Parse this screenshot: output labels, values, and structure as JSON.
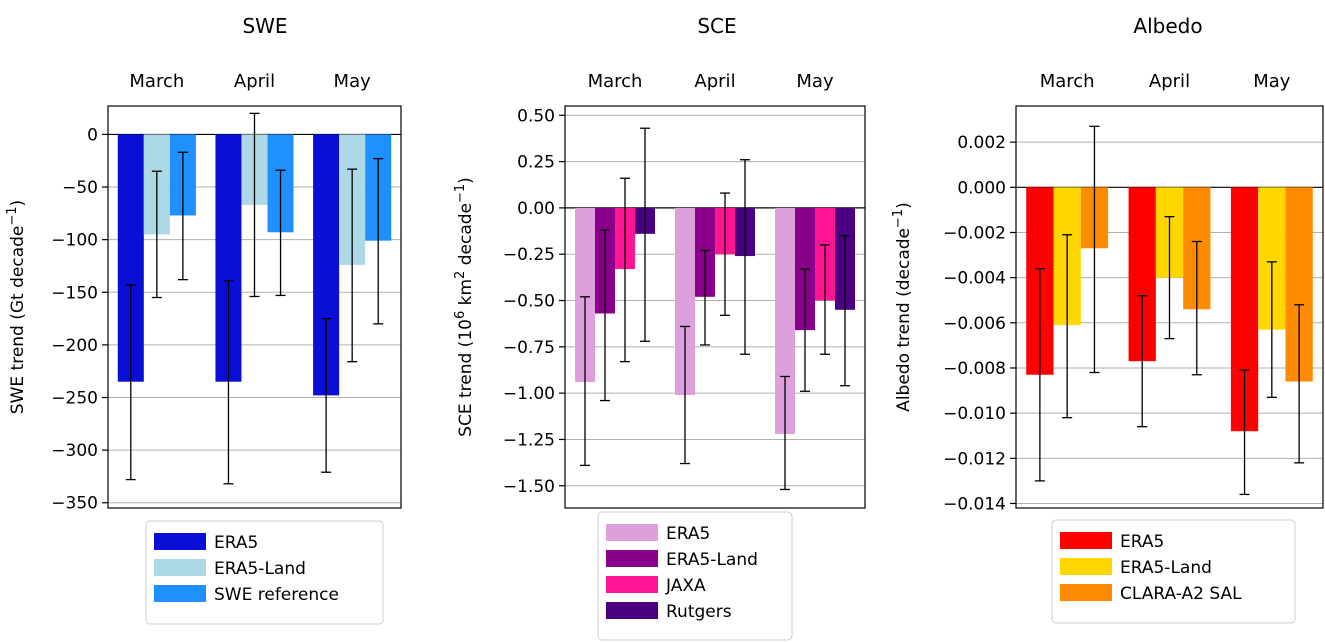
{
  "chart_data": [
    {
      "type": "bar",
      "title": "SWE",
      "ylabel_html": "SWE trend (Gt decade<sup>−1</sup>)",
      "xlabel": "",
      "categories": [
        "March",
        "April",
        "May"
      ],
      "ylim": [
        -355,
        27
      ],
      "yticks": [
        0,
        -50,
        -100,
        -150,
        -200,
        -250,
        -300,
        -350
      ],
      "yticklabels": [
        "0",
        "−50",
        "−100",
        "−150",
        "−200",
        "−250",
        "−300",
        "−350"
      ],
      "grid": "horizontal",
      "legend_position": "bottom",
      "series": [
        {
          "name": "ERA5",
          "color": "#0a0fd6",
          "values": [
            -235,
            -235,
            -248
          ],
          "err_low": [
            -328,
            -332,
            -321
          ],
          "err_high": [
            -143,
            -139,
            -175
          ]
        },
        {
          "name": "ERA5-Land",
          "color": "#add8e6",
          "values": [
            -95,
            -67,
            -124
          ],
          "err_low": [
            -155,
            -154,
            -216
          ],
          "err_high": [
            -35,
            20,
            -33
          ]
        },
        {
          "name": "SWE reference",
          "color": "#1e90ff",
          "values": [
            -77,
            -93,
            -101
          ],
          "err_low": [
            -138,
            -153,
            -180
          ],
          "err_high": [
            -17,
            -34,
            -23
          ]
        }
      ]
    },
    {
      "type": "bar",
      "title": "SCE",
      "ylabel_html": "SCE trend (10<sup>6</sup> km<sup>2</sup> decade<sup>−1</sup>)",
      "xlabel": "",
      "categories": [
        "March",
        "April",
        "May"
      ],
      "ylim": [
        -1.62,
        0.55
      ],
      "yticks": [
        0.5,
        0.25,
        0,
        -0.25,
        -0.5,
        -0.75,
        -1.0,
        -1.25,
        -1.5
      ],
      "yticklabels": [
        "0.50",
        "0.25",
        "0.00",
        "−0.25",
        "−0.50",
        "−0.75",
        "−1.00",
        "−1.25",
        "−1.50"
      ],
      "grid": "horizontal",
      "legend_position": "bottom",
      "series": [
        {
          "name": "ERA5",
          "color": "#dda0dd",
          "values": [
            -0.94,
            -1.01,
            -1.22
          ],
          "err_low": [
            -1.39,
            -1.38,
            -1.52
          ],
          "err_high": [
            -0.48,
            -0.64,
            -0.91
          ]
        },
        {
          "name": "ERA5-Land",
          "color": "#8b008b",
          "values": [
            -0.57,
            -0.48,
            -0.66
          ],
          "err_low": [
            -1.04,
            -0.74,
            -0.99
          ],
          "err_high": [
            -0.12,
            -0.23,
            -0.33
          ]
        },
        {
          "name": "JAXA",
          "color": "#ff1493",
          "values": [
            -0.33,
            -0.25,
            -0.5
          ],
          "err_low": [
            -0.83,
            -0.58,
            -0.79
          ],
          "err_high": [
            0.16,
            0.08,
            -0.2
          ]
        },
        {
          "name": "Rutgers",
          "color": "#4b0082",
          "values": [
            -0.14,
            -0.26,
            -0.55
          ],
          "err_low": [
            -0.72,
            -0.79,
            -0.96
          ],
          "err_high": [
            0.43,
            0.26,
            -0.15
          ]
        }
      ]
    },
    {
      "type": "bar",
      "title": "Albedo",
      "ylabel_html": "Albedo trend (decade<sup>−1</sup>)",
      "xlabel": "",
      "categories": [
        "March",
        "April",
        "May"
      ],
      "ylim": [
        -0.0142,
        0.0036
      ],
      "yticks": [
        0.002,
        0,
        -0.002,
        -0.004,
        -0.006,
        -0.008,
        -0.01,
        -0.012,
        -0.014
      ],
      "yticklabels": [
        "0.002",
        "0.000",
        "−0.002",
        "−0.004",
        "−0.006",
        "−0.008",
        "−0.010",
        "−0.012",
        "−0.014"
      ],
      "grid": "horizontal",
      "legend_position": "bottom",
      "series": [
        {
          "name": "ERA5",
          "color": "#ff0000",
          "values": [
            -0.0083,
            -0.0077,
            -0.0108
          ],
          "err_low": [
            -0.013,
            -0.0106,
            -0.0136
          ],
          "err_high": [
            -0.0036,
            -0.0048,
            -0.0081
          ]
        },
        {
          "name": "ERA5-Land",
          "color": "#ffd700",
          "values": [
            -0.0061,
            -0.004,
            -0.0063
          ],
          "err_low": [
            -0.0102,
            -0.0067,
            -0.0093
          ],
          "err_high": [
            -0.0021,
            -0.0013,
            -0.0033
          ]
        },
        {
          "name": "CLARA-A2 SAL",
          "color": "#ff8c00",
          "values": [
            -0.0027,
            -0.0054,
            -0.0086
          ],
          "err_low": [
            -0.0082,
            -0.0083,
            -0.0122
          ],
          "err_high": [
            0.0027,
            -0.0024,
            -0.0052
          ]
        }
      ]
    }
  ]
}
